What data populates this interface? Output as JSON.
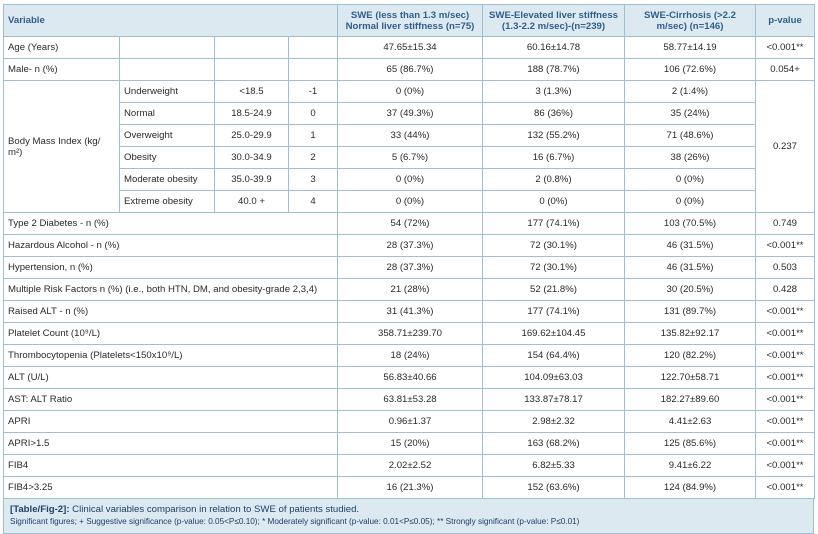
{
  "header": {
    "variable": "Variable",
    "g1": "SWE (less than 1.3 m/sec) Normal liver stiffness (n=75)",
    "g2": "SWE-Elevated liver stiffness (1.3-2.2 m/sec)-(n=239)",
    "g3": "SWE-Cirrhosis (>2.2 m/sec) (n=146)",
    "p": "p-value"
  },
  "rows_top": [
    {
      "label": "Age (Years)",
      "g1": "47.65±15.34",
      "g2": "60.16±14.78",
      "g3": "58.77±14.19",
      "p": "<0.001**"
    },
    {
      "label": "Male- n (%)",
      "g1": "65 (86.7%)",
      "g2": "188 (78.7%)",
      "g3": "106 (72.6%)",
      "p": "0.054+"
    }
  ],
  "bmi": {
    "label": "Body Mass Index (kg/ m²)",
    "p": "0.237",
    "rows": [
      {
        "cat": "Underweight",
        "range": "<18.5",
        "code": "-1",
        "g1": "0 (0%)",
        "g2": "3 (1.3%)",
        "g3": "2 (1.4%)"
      },
      {
        "cat": "Normal",
        "range": "18.5-24.9",
        "code": "0",
        "g1": "37 (49.3%)",
        "g2": "86 (36%)",
        "g3": "35 (24%)"
      },
      {
        "cat": "Overweight",
        "range": "25.0-29.9",
        "code": "1",
        "g1": "33 (44%)",
        "g2": "132 (55.2%)",
        "g3": "71 (48.6%)"
      },
      {
        "cat": "Obesity",
        "range": "30.0-34.9",
        "code": "2",
        "g1": "5 (6.7%)",
        "g2": "16 (6.7%)",
        "g3": "38 (26%)"
      },
      {
        "cat": "Moderate obesity",
        "range": "35.0-39.9",
        "code": "3",
        "g1": "0 (0%)",
        "g2": "2 (0.8%)",
        "g3": "0 (0%)"
      },
      {
        "cat": "Extreme obesity",
        "range": "40.0 +",
        "code": "4",
        "g1": "0 (0%)",
        "g2": "0 (0%)",
        "g3": "0 (0%)"
      }
    ]
  },
  "rows_bottom": [
    {
      "label": "Type 2 Diabetes - n (%)",
      "g1": "54 (72%)",
      "g2": "177 (74.1%)",
      "g3": "103 (70.5%)",
      "p": "0.749"
    },
    {
      "label": "Hazardous Alcohol - n (%)",
      "g1": "28 (37.3%)",
      "g2": "72 (30.1%)",
      "g3": "46 (31.5%)",
      "p": "<0.001**"
    },
    {
      "label": "Hypertension, n (%)",
      "g1": "28 (37.3%)",
      "g2": "72 (30.1%)",
      "g3": "46 (31.5%)",
      "p": "0.503"
    },
    {
      "label": "Multiple Risk Factors n (%) (i.e., both HTN, DM, and obesity-grade 2,3,4)",
      "g1": "21 (28%)",
      "g2": "52 (21.8%)",
      "g3": "30 (20.5%)",
      "p": "0.428"
    },
    {
      "label": "Raised ALT - n (%)",
      "g1": "31 (41.3%)",
      "g2": "177 (74.1%)",
      "g3": "131 (89.7%)",
      "p": "<0.001**"
    },
    {
      "label": "Platelet Count (10⁹/L)",
      "g1": "358.71±239.70",
      "g2": "169.62±104.45",
      "g3": "135.82±92.17",
      "p": "<0.001**"
    },
    {
      "label": "Thrombocytopenia (Platelets<150x10⁹/L)",
      "g1": "18 (24%)",
      "g2": "154 (64.4%)",
      "g3": "120 (82.2%)",
      "p": "<0.001**"
    },
    {
      "label": "ALT (U/L)",
      "g1": "56.83±40.66",
      "g2": "104.09±63.03",
      "g3": "122.70±58.71",
      "p": "<0.001**"
    },
    {
      "label": "AST: ALT Ratio",
      "g1": "63.81±53.28",
      "g2": "133.87±78.17",
      "g3": "182.27±89.60",
      "p": "<0.001**"
    },
    {
      "label": "APRI",
      "g1": "0.96±1.37",
      "g2": "2.98±2.32",
      "g3": "4.41±2.63",
      "p": "<0.001**"
    },
    {
      "label": "APRI>1.5",
      "g1": "15 (20%)",
      "g2": "163 (68.2%)",
      "g3": "125 (85.6%)",
      "p": "<0.001**"
    },
    {
      "label": "FIB4",
      "g1": "2.02±2.52",
      "g2": "6.82±5.33",
      "g3": "9.41±6.22",
      "p": "<0.001**"
    },
    {
      "label": "FIB4>3.25",
      "g1": "16 (21.3%)",
      "g2": "152 (63.6%)",
      "g3": "124 (84.9%)",
      "p": "<0.001**"
    }
  ],
  "caption": {
    "tag": "[Table/Fig-2]:",
    "text": " Clinical variables comparison in relation to SWE of patients studied.",
    "note": "Significant figures; + Suggestive significance (p-value: 0.05<P≤0.10); * Moderately significant (p-value: 0.01<P≤0.05); ** Strongly significant (p-value: P≤0.01)"
  }
}
